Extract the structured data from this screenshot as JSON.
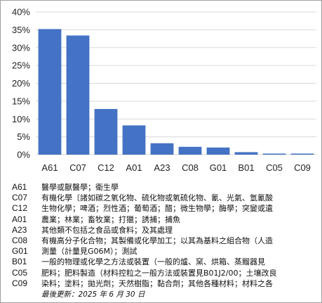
{
  "chart_data": {
    "type": "bar",
    "categories": [
      "A61",
      "C07",
      "C12",
      "A01",
      "A23",
      "C08",
      "G01",
      "B01",
      "C05",
      "C09"
    ],
    "values": [
      35.2,
      33.4,
      12.8,
      8.2,
      3.2,
      2.2,
      2.0,
      0.7,
      0.3,
      0.3
    ],
    "unit": "%",
    "ylim": [
      0,
      40
    ],
    "yticks": [
      "0%",
      "5%",
      "10%",
      "15%",
      "20%",
      "25%",
      "30%",
      "35%",
      "40%"
    ],
    "grid": true,
    "bar_color": "#4472c4",
    "grid_color": "#d9d9d9"
  },
  "legend": [
    {
      "code": "A61",
      "desc": "醫學或獸醫學；衛生學"
    },
    {
      "code": "C07",
      "desc": "有機化學〔諸如碳之氧化物、硫化物或氧硫化物、氰、光氣、氫氰酸"
    },
    {
      "code": "C12",
      "desc": "生物化學；啤酒；烈性酒；葡萄酒；醋；微生物學；酶學；突變或遺"
    },
    {
      "code": "A01",
      "desc": "農業；林業；畜牧業；打獵；誘捕；捕魚"
    },
    {
      "code": "A23",
      "desc": "其他類不包括之食品或食料；及其處理"
    },
    {
      "code": "C08",
      "desc": "有機高分子化合物；其製備或化學加工；以其為基料之組合物（人造"
    },
    {
      "code": "G01",
      "desc": "測量（計量見G06M）；測試"
    },
    {
      "code": "B01",
      "desc": "一般的物理或化學之方法或裝置（一般的爐、窯、烘箱、蒸餾器見"
    },
    {
      "code": "C05",
      "desc": "肥料；肥料製造（材料控粒之一般方法或裝置見B01J2/00；土壤改良"
    },
    {
      "code": "C09",
      "desc": "染料；塗料；拋光劑；天然樹脂；黏合劑；其他各種材料；材料之各"
    }
  ],
  "footnote": "最後更新：2025 年 6 月 30 日"
}
